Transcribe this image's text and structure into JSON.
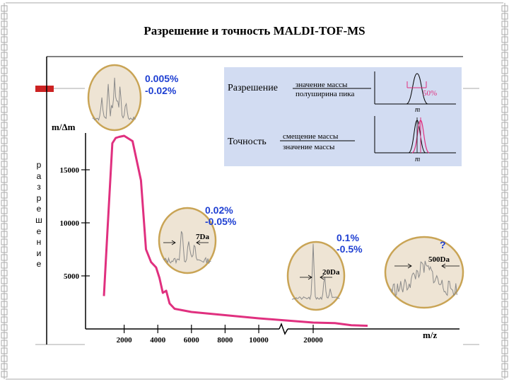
{
  "slide": {
    "title": "Разрешение и точность MALDI-TOF-MS",
    "vertical_label": [
      "р",
      "а",
      "з",
      "р",
      "е",
      "ш",
      "е",
      "н",
      "и",
      "е"
    ]
  },
  "colors": {
    "curve": "#e0307f",
    "accent_red": "#cc2222",
    "inset_panel": "#d2dcf2",
    "callout_blue": "#1e3fd2",
    "circle_border": "#c9a455",
    "circle_fill": "#eee4d4",
    "spectrum_gray": "#8a8a8a",
    "decor_line": "#aaaaaa"
  },
  "chart_data": {
    "type": "line",
    "title": "",
    "xlabel": "m/z",
    "ylabel": "m/Δm",
    "xticks": [
      2000,
      4000,
      6000,
      8000,
      10000,
      20000
    ],
    "xtick_labels": [
      "2000",
      "4000",
      "6000",
      "8000",
      "10000",
      "20000"
    ],
    "yticks": [
      5000,
      10000,
      15000
    ],
    "ytick_labels": [
      "5000",
      "10000",
      "15000"
    ],
    "ylim": [
      0,
      20000
    ],
    "x_axis_break": "between 10000 and 20000",
    "grid": false,
    "series": [
      {
        "x": [
          800,
          1000,
          1300,
          1500,
          1700,
          2000,
          2500,
          3000,
          3300,
          3600,
          3900,
          4100,
          4300,
          4500,
          4700,
          5000,
          6000,
          8000,
          10000,
          20000,
          24000,
          27000,
          30000
        ],
        "y": [
          3100,
          9000,
          17500,
          18000,
          18100,
          18200,
          17700,
          14000,
          7500,
          6300,
          5800,
          4800,
          3400,
          3600,
          2400,
          1900,
          1600,
          1300,
          1000,
          600,
          550,
          350,
          300
        ]
      }
    ],
    "callouts": [
      {
        "values": [
          "0.005%",
          "-0.02%"
        ],
        "peak_label": ""
      },
      {
        "values": [
          "0.02%",
          "-0.05%"
        ],
        "peak_label": "7Da"
      },
      {
        "values": [
          "0.1%",
          "-0.5%"
        ],
        "peak_label": "20Da"
      },
      {
        "values": [
          "?"
        ],
        "peak_label": "500Da"
      }
    ]
  },
  "definitions": {
    "resolution": {
      "label": "Разрешение",
      "numerator": "значение массы",
      "denominator": "полуширина пика",
      "percent": "50%",
      "axis_label": "m"
    },
    "accuracy": {
      "label": "Точность",
      "numerator": "смещение массы",
      "denominator": "значение массы",
      "axis_label": "m"
    }
  }
}
